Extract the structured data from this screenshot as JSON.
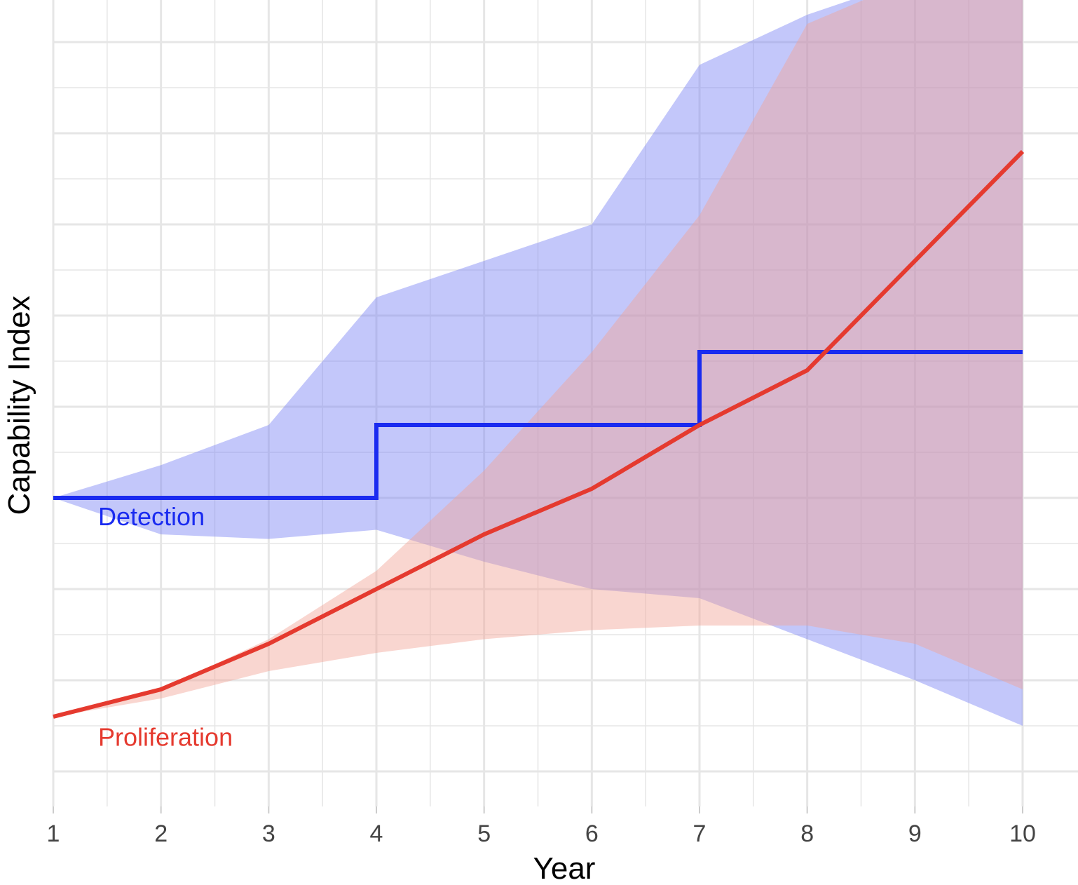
{
  "chart_data": {
    "type": "line",
    "title": "",
    "xlabel": "Year",
    "ylabel": "Capability Index",
    "x": [
      1,
      2,
      3,
      4,
      5,
      6,
      7,
      8,
      9,
      10
    ],
    "xlim": [
      1,
      10
    ],
    "ylim": [
      0,
      8.7
    ],
    "y_tick_labels_shown": false,
    "grid": true,
    "legend": "none",
    "series": [
      {
        "name": "Detection",
        "line_style": "step",
        "color": "#1a2bf0",
        "band_color": "#7b83f5",
        "values": [
          3.0,
          3.0,
          3.0,
          3.8,
          3.8,
          3.8,
          4.6,
          4.6,
          4.6,
          4.6
        ],
        "upper": [
          3.0,
          3.36,
          3.8,
          5.2,
          5.6,
          6.0,
          7.75,
          8.3,
          8.7,
          8.7
        ],
        "lower": [
          3.0,
          2.6,
          2.55,
          2.65,
          2.3,
          2.0,
          1.9,
          1.45,
          1.0,
          0.5
        ]
      },
      {
        "name": "Proliferation",
        "line_style": "line",
        "color": "#e53a2f",
        "band_color": "#f2a597",
        "values": [
          0.6,
          0.9,
          1.4,
          2.0,
          2.6,
          3.1,
          3.8,
          4.4,
          5.6,
          6.8
        ],
        "upper": [
          0.6,
          0.9,
          1.45,
          2.2,
          3.3,
          4.6,
          6.1,
          8.2,
          8.7,
          8.7
        ],
        "lower": [
          0.6,
          0.8,
          1.1,
          1.3,
          1.45,
          1.55,
          1.6,
          1.6,
          1.4,
          0.9
        ]
      }
    ]
  }
}
